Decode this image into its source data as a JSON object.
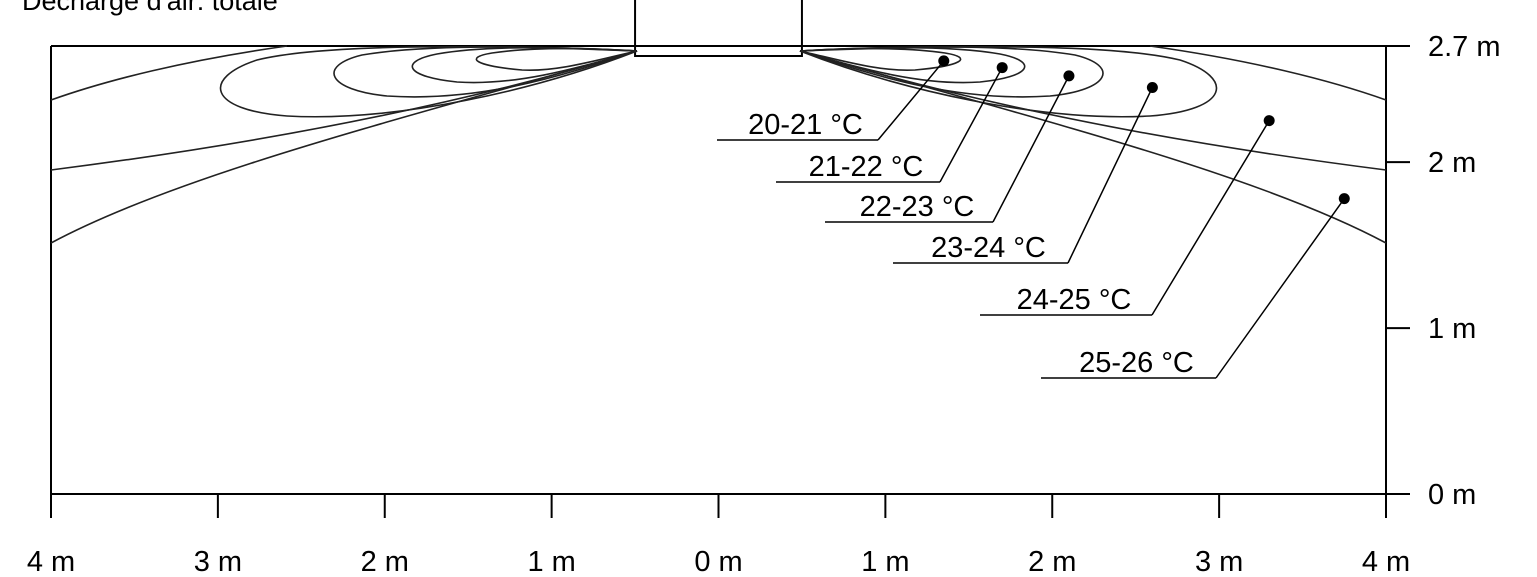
{
  "chart_data": {
    "type": "contour",
    "title": "Décharge d'air: totale",
    "x_ticks": [
      "4 m",
      "3 m",
      "2 m",
      "1 m",
      "0 m",
      "1 m",
      "2 m",
      "3 m",
      "4 m"
    ],
    "y_ticks": [
      "0 m",
      "1 m",
      "2 m",
      "2.7 m"
    ],
    "xlim": [
      -4,
      4
    ],
    "ylim": [
      0,
      2.7
    ],
    "contours": [
      {
        "label": "20-21 °C",
        "point": [
          1.35,
          2.61
        ]
      },
      {
        "label": "21-22 °C",
        "point": [
          1.7,
          2.57
        ]
      },
      {
        "label": "22-23 °C",
        "point": [
          2.1,
          2.52
        ]
      },
      {
        "label": "23-24 °C",
        "point": [
          2.6,
          2.45
        ]
      },
      {
        "label": "24-25 °C",
        "point": [
          3.3,
          2.25
        ]
      },
      {
        "label": "25-26 °C",
        "point": [
          3.75,
          1.78
        ]
      }
    ]
  }
}
